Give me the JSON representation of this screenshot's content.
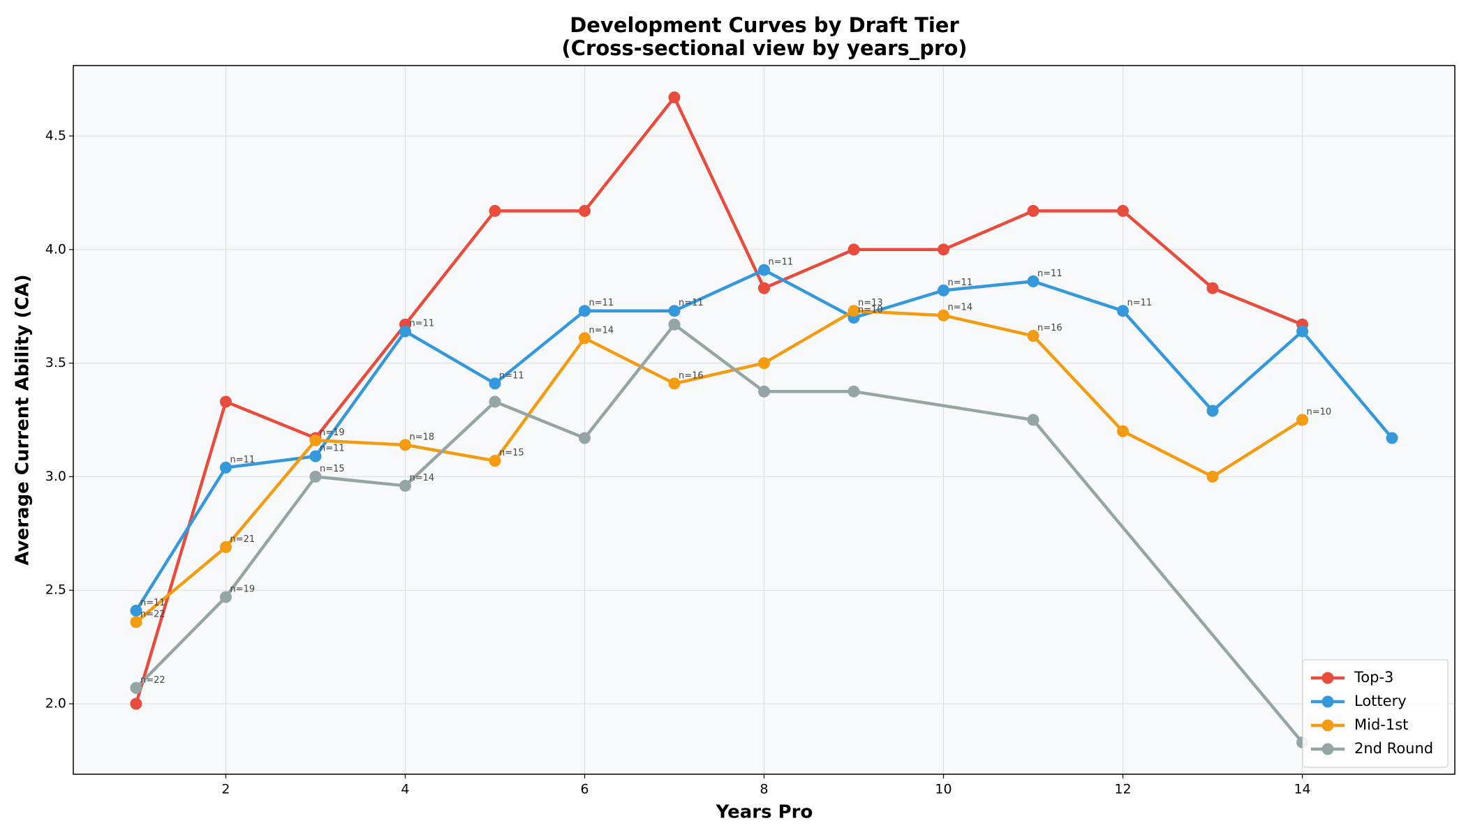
{
  "chart_data": {
    "type": "line",
    "title": "Development Curves by Draft Tier",
    "subtitle": "(Cross-sectional view by years_pro)",
    "x_label": "Years Pro",
    "y_label": "Average Current Ability (CA)",
    "xlim": [
      0.3,
      15.7
    ],
    "ylim": [
      1.69,
      4.81
    ],
    "xticks": [
      2,
      4,
      6,
      8,
      10,
      12,
      14
    ],
    "yticks": [
      {
        "value": 2,
        "label": "2.0"
      },
      2.5,
      {
        "value": 3,
        "label": "3.0"
      },
      3.5,
      {
        "value": 4,
        "label": "4.0"
      },
      4.5
    ],
    "grid": true,
    "legend": "lower right",
    "series": [
      {
        "name": "Top-3",
        "color": "#e74c3c",
        "x": [
          1,
          2,
          3,
          4,
          5,
          6,
          7,
          8,
          9,
          10,
          11,
          12,
          13,
          14
        ],
        "values": [
          2.0,
          3.33,
          3.17,
          3.67,
          4.17,
          4.17,
          4.67,
          3.83,
          4.0,
          4.0,
          4.17,
          4.17,
          3.83,
          3.67
        ],
        "annotations": [
          null,
          null,
          null,
          null,
          null,
          null,
          null,
          null,
          null,
          null,
          null,
          null,
          null,
          null
        ]
      },
      {
        "name": "Lottery",
        "color": "#3498db",
        "x": [
          1,
          2,
          3,
          4,
          5,
          6,
          7,
          8,
          9,
          10,
          11,
          12,
          13,
          14,
          15
        ],
        "values": [
          2.41,
          3.04,
          3.09,
          3.64,
          3.41,
          3.73,
          3.73,
          3.91,
          3.7,
          3.82,
          3.86,
          3.73,
          3.29,
          3.64,
          3.17
        ],
        "annotations": [
          "n=11",
          "n=11",
          "n=11",
          "n=11",
          "n=11",
          "n=11",
          "n=11",
          "n=11",
          "n=10",
          "n=11",
          "n=11",
          "n=11",
          null,
          null,
          null
        ]
      },
      {
        "name": "Mid-1st",
        "color": "#f39c12",
        "x": [
          1,
          2,
          3,
          4,
          5,
          6,
          7,
          8,
          9,
          10,
          11,
          12,
          13,
          14
        ],
        "values": [
          2.36,
          2.69,
          3.16,
          3.14,
          3.07,
          3.61,
          3.41,
          3.5,
          3.73,
          3.71,
          3.62,
          3.2,
          3.0,
          3.25
        ],
        "annotations": [
          "n=22",
          "n=21",
          "n=19",
          "n=18",
          "n=15",
          "n=14",
          "n=16",
          null,
          "n=13",
          "n=14",
          "n=16",
          null,
          null,
          "n=10"
        ]
      },
      {
        "name": "2nd Round",
        "color": "#95a5a6",
        "x": [
          1,
          2,
          3,
          4,
          5,
          6,
          7,
          8,
          9,
          11,
          14
        ],
        "values": [
          2.07,
          2.47,
          3.0,
          2.96,
          3.33,
          3.17,
          3.67,
          3.375,
          3.375,
          3.25,
          1.83
        ],
        "annotations": [
          "n=22",
          "n=19",
          "n=15",
          "n=14",
          null,
          null,
          null,
          null,
          null,
          null,
          null
        ]
      }
    ]
  }
}
